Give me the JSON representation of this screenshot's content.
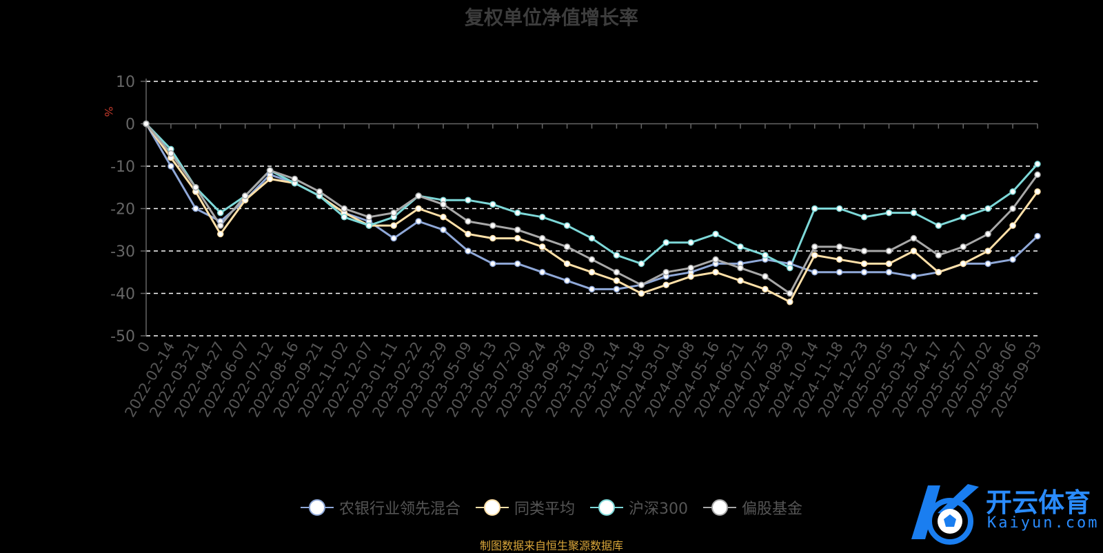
{
  "watermark": {
    "name": "开云体育",
    "domain": "Kaiyun.com"
  },
  "source_note": "制图数据来自恒生聚源数据库",
  "chart_data": {
    "type": "line",
    "title": "复权单位净值增长率",
    "ylabel": "%",
    "ylim": [
      -50,
      10
    ],
    "yticks": [
      10,
      0,
      -10,
      -20,
      -30,
      -40,
      -50
    ],
    "grid": true,
    "legend_position": "bottom",
    "x": [
      "0",
      "2022-02-14",
      "2022-03-21",
      "2022-04-27",
      "2022-06-07",
      "2022-07-12",
      "2022-08-16",
      "2022-09-21",
      "2022-11-02",
      "2022-12-07",
      "2023-01-11",
      "2023-02-22",
      "2023-03-29",
      "2023-05-09",
      "2023-06-13",
      "2023-07-20",
      "2023-08-24",
      "2023-09-28",
      "2023-11-09",
      "2023-12-14",
      "2024-01-18",
      "2024-03-01",
      "2024-04-08",
      "2024-05-16",
      "2024-06-21",
      "2024-07-25",
      "2024-08-29",
      "2024-10-14",
      "2024-11-18",
      "2024-12-23",
      "2025-02-05",
      "2025-03-12",
      "2025-04-17",
      "2025-05-27",
      "2025-07-02",
      "2025-08-06",
      "2025-09-03"
    ],
    "series": [
      {
        "name": "农银行业领先混合",
        "color": "#8fa8d8",
        "values": [
          0,
          -10,
          -20,
          -23,
          -18,
          -12,
          -14,
          -17,
          -21,
          -23,
          -27,
          -23,
          -25,
          -30,
          -33,
          -33,
          -35,
          -37,
          -39,
          -39,
          -38,
          -36,
          -35,
          -33,
          -33,
          -32,
          -33,
          -35,
          -35,
          -35,
          -35,
          -36,
          -35,
          -33,
          -33,
          -32,
          -26.5
        ]
      },
      {
        "name": "同类平均",
        "color": "#ffe0a8",
        "values": [
          0,
          -8,
          -16,
          -26,
          -18,
          -13,
          -14,
          -17,
          -21,
          -24,
          -24,
          -20,
          -22,
          -26,
          -27,
          -27,
          -29,
          -33,
          -35,
          -37,
          -40,
          -38,
          -36,
          -35,
          -37,
          -39,
          -42,
          -31,
          -32,
          -33,
          -33,
          -30,
          -35,
          -33,
          -30,
          -24,
          -16
        ]
      },
      {
        "name": "沪深300",
        "color": "#7dd8d8",
        "values": [
          0,
          -6,
          -15,
          -21,
          -17,
          -11,
          -14,
          -17,
          -22,
          -24,
          -22,
          -17,
          -18,
          -18,
          -19,
          -21,
          -22,
          -24,
          -27,
          -31,
          -33,
          -28,
          -28,
          -26,
          -29,
          -31,
          -34,
          -20,
          -20,
          -22,
          -21,
          -21,
          -24,
          -22,
          -20,
          -16,
          -9.5
        ]
      },
      {
        "name": "偏股基金",
        "color": "#a8a8a8",
        "values": [
          0,
          -7,
          -15,
          -24,
          -17,
          -11,
          -13,
          -16,
          -20,
          -22,
          -21,
          -17,
          -19,
          -23,
          -24,
          -25,
          -27,
          -29,
          -32,
          -35,
          -38,
          -35,
          -34,
          -32,
          -34,
          -36,
          -40,
          -29,
          -29,
          -30,
          -30,
          -27,
          -31,
          -29,
          -26,
          -20,
          -12
        ]
      }
    ]
  }
}
